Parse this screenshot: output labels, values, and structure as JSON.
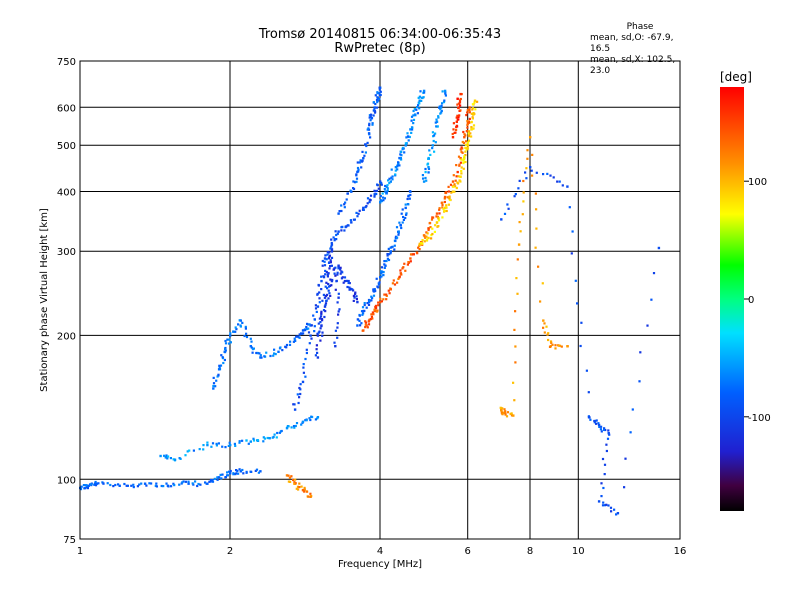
{
  "chart_data": {
    "type": "scatter",
    "title": "Tromsø 20140815 06:34:00-06:35:43",
    "subtitle": "RwPretec (8p)",
    "xlabel": "Frequency [MHz]",
    "ylabel": "Stationary phase Virtual Height [km]",
    "xscale": "log",
    "yscale": "log",
    "xlim": [
      1,
      16
    ],
    "ylim": [
      75,
      750
    ],
    "x_ticks": [
      1,
      2,
      4,
      6,
      8,
      10,
      16
    ],
    "y_ticks": [
      75,
      100,
      200,
      300,
      400,
      500,
      600,
      750
    ],
    "grid": true,
    "phase_info": {
      "title": "Phase",
      "line_o": "mean, sd,O: -67.9, 16.5",
      "line_x": "mean, sd,X: 102.5, 23.0"
    },
    "colorbar": {
      "label": "[deg]",
      "ticks": [
        100,
        0,
        -100
      ],
      "range": [
        -180,
        180
      ]
    },
    "traces": [
      {
        "phase": -80,
        "points": [
          [
            1.0,
            96
          ],
          [
            1.04,
            97
          ],
          [
            1.08,
            98
          ],
          [
            1.2,
            97
          ],
          [
            1.35,
            98
          ],
          [
            1.5,
            97
          ],
          [
            1.65,
            98
          ],
          [
            1.8,
            98
          ],
          [
            1.9,
            101
          ],
          [
            2.0,
            103
          ],
          [
            2.1,
            104
          ],
          [
            2.3,
            104
          ]
        ]
      },
      {
        "phase": -60,
        "points": [
          [
            1.45,
            112
          ],
          [
            1.55,
            110
          ],
          [
            1.8,
            118
          ],
          [
            2.0,
            118
          ],
          [
            2.2,
            120
          ],
          [
            2.4,
            122
          ],
          [
            2.6,
            128
          ],
          [
            2.8,
            132
          ],
          [
            3.0,
            135
          ]
        ]
      },
      {
        "phase": -75,
        "points": [
          [
            1.85,
            155
          ],
          [
            1.9,
            170
          ],
          [
            1.95,
            185
          ],
          [
            2.0,
            200
          ],
          [
            2.1,
            215
          ],
          [
            2.2,
            190
          ],
          [
            2.3,
            180
          ],
          [
            2.5,
            185
          ],
          [
            2.7,
            195
          ],
          [
            2.8,
            205
          ],
          [
            2.9,
            210
          ]
        ]
      },
      {
        "phase": -95,
        "points": [
          [
            2.7,
            140
          ],
          [
            2.8,
            160
          ],
          [
            2.9,
            200
          ],
          [
            3.0,
            230
          ],
          [
            3.05,
            260
          ],
          [
            3.1,
            290
          ],
          [
            3.2,
            310
          ],
          [
            3.3,
            330
          ],
          [
            3.5,
            345
          ],
          [
            3.7,
            370
          ],
          [
            3.9,
            395
          ],
          [
            4.0,
            420
          ]
        ]
      },
      {
        "phase": -110,
        "points": [
          [
            3.0,
            200
          ],
          [
            3.1,
            230
          ],
          [
            3.2,
            260
          ],
          [
            3.3,
            280
          ],
          [
            3.4,
            260
          ],
          [
            3.5,
            250
          ],
          [
            3.6,
            235
          ]
        ]
      },
      {
        "phase": -110,
        "points": [
          [
            3.0,
            180
          ],
          [
            3.05,
            210
          ],
          [
            3.1,
            240
          ],
          [
            3.15,
            270
          ],
          [
            3.2,
            300
          ],
          [
            3.3,
            240
          ],
          [
            3.25,
            190
          ]
        ]
      },
      {
        "phase": -85,
        "points": [
          [
            3.3,
            360
          ],
          [
            3.5,
            400
          ],
          [
            3.6,
            440
          ],
          [
            3.7,
            470
          ],
          [
            3.8,
            530
          ],
          [
            3.85,
            570
          ],
          [
            3.9,
            600
          ],
          [
            3.95,
            630
          ],
          [
            4.0,
            660
          ]
        ]
      },
      {
        "phase": -80,
        "points": [
          [
            3.6,
            210
          ],
          [
            3.7,
            225
          ],
          [
            3.8,
            235
          ],
          [
            3.9,
            250
          ],
          [
            4.0,
            265
          ],
          [
            4.1,
            280
          ],
          [
            4.2,
            300
          ],
          [
            4.3,
            320
          ],
          [
            4.4,
            340
          ],
          [
            4.5,
            370
          ],
          [
            4.6,
            400
          ]
        ]
      },
      {
        "phase": -65,
        "points": [
          [
            4.0,
            380
          ],
          [
            4.1,
            400
          ],
          [
            4.2,
            420
          ],
          [
            4.3,
            450
          ],
          [
            4.4,
            470
          ],
          [
            4.5,
            500
          ],
          [
            4.6,
            540
          ],
          [
            4.7,
            580
          ],
          [
            4.8,
            620
          ],
          [
            4.9,
            650
          ]
        ]
      },
      {
        "phase": -60,
        "points": [
          [
            4.9,
            420
          ],
          [
            5.0,
            450
          ],
          [
            5.1,
            500
          ],
          [
            5.2,
            560
          ],
          [
            5.3,
            600
          ],
          [
            5.4,
            650
          ]
        ]
      },
      {
        "phase": 140,
        "points": [
          [
            3.7,
            205
          ],
          [
            3.8,
            215
          ],
          [
            3.9,
            225
          ],
          [
            4.0,
            235
          ],
          [
            4.2,
            250
          ],
          [
            4.4,
            270
          ],
          [
            4.6,
            290
          ],
          [
            4.8,
            310
          ],
          [
            5.0,
            335
          ],
          [
            5.2,
            360
          ],
          [
            5.4,
            390
          ],
          [
            5.6,
            420
          ],
          [
            5.8,
            470
          ],
          [
            5.9,
            520
          ],
          [
            6.0,
            560
          ],
          [
            6.05,
            600
          ]
        ]
      },
      {
        "phase": 90,
        "points": [
          [
            4.8,
            310
          ],
          [
            5.0,
            320
          ],
          [
            5.2,
            345
          ],
          [
            5.4,
            370
          ],
          [
            5.6,
            400
          ],
          [
            5.8,
            430
          ],
          [
            5.9,
            470
          ],
          [
            6.0,
            500
          ],
          [
            6.1,
            540
          ],
          [
            6.15,
            580
          ],
          [
            6.2,
            620
          ]
        ]
      },
      {
        "phase": 160,
        "points": [
          [
            5.6,
            520
          ],
          [
            5.7,
            560
          ],
          [
            5.75,
            600
          ],
          [
            5.8,
            640
          ]
        ]
      },
      {
        "phase": 120,
        "points": [
          [
            2.6,
            102
          ],
          [
            2.7,
            98
          ],
          [
            2.8,
            95
          ],
          [
            2.9,
            92
          ]
        ]
      },
      {
        "phase": 110,
        "points": [
          [
            7.0,
            140
          ],
          [
            7.1,
            138
          ],
          [
            7.4,
            136
          ],
          [
            7.6,
            310
          ],
          [
            8.0,
            520
          ],
          [
            8.5,
            215
          ],
          [
            8.8,
            190
          ],
          [
            9.5,
            190
          ]
        ]
      },
      {
        "phase": -95,
        "points": [
          [
            7.0,
            350
          ],
          [
            8.0,
            450
          ],
          [
            9.5,
            410
          ],
          [
            10.5,
            135
          ],
          [
            11.0,
            130
          ],
          [
            11.5,
            125
          ],
          [
            11.0,
            90
          ],
          [
            12.0,
            85
          ],
          [
            14.5,
            305
          ]
        ]
      }
    ]
  }
}
